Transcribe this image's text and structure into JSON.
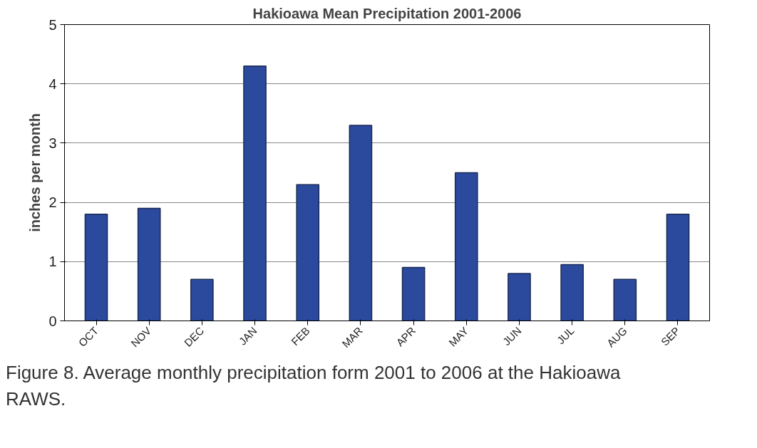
{
  "chart_data": {
    "type": "bar",
    "title": "Hakioawa Mean Precipitation 2001-2006",
    "ylabel": "inches per month",
    "categories": [
      "OCT",
      "NOV",
      "DEC",
      "JAN",
      "FEB",
      "MAR",
      "APR",
      "MAY",
      "JUN",
      "JUL",
      "AUG",
      "SEP"
    ],
    "values": [
      1.8,
      1.9,
      0.7,
      4.3,
      2.3,
      3.3,
      0.9,
      2.5,
      0.8,
      0.95,
      0.7,
      1.8
    ],
    "color": "#2b4a9e",
    "ylim": [
      0,
      5
    ],
    "yticks": [
      0,
      1,
      2,
      3,
      4,
      5
    ],
    "grid": "y",
    "annotations": [
      "Figure 8. Average monthly precipitation form 2001 to 2006 at the Hakioawa RAWS."
    ]
  }
}
